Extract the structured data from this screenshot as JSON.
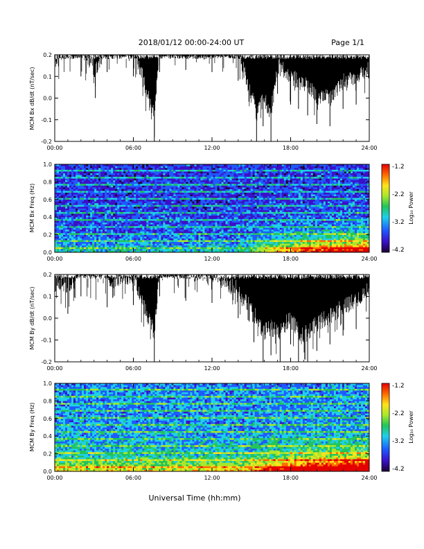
{
  "header": {
    "title": "2018/01/12  00:00-24:00 UT",
    "page": "Page 1/1"
  },
  "footer": {
    "xlabel": "Universal Time (hh:mm)"
  },
  "colorbar": {
    "label": "Log₁₀ Power",
    "ticks": [
      "-1.2",
      "-2.2",
      "-3.2",
      "-4.2"
    ]
  },
  "chart_data": [
    {
      "type": "line",
      "panel": "bx-waveform",
      "ylabel": "MCM Bx dB/dt (nT/sec)",
      "xlim": [
        0,
        24
      ],
      "ylim": [
        -0.2,
        0.2
      ],
      "xticks": [
        "00:00",
        "06:00",
        "12:00",
        "18:00",
        "24:00"
      ],
      "yticks": [
        "0.2",
        "0.1",
        "0.0",
        "-0.1",
        "-0.2"
      ],
      "series": [
        {
          "x": [
            0,
            2,
            3.1,
            4,
            6,
            7.6,
            8,
            10,
            12,
            14,
            15.4,
            15.9,
            16.5,
            17,
            18,
            18.6,
            19.3,
            20,
            21,
            22,
            23,
            24
          ],
          "y": [
            0.06,
            0.1,
            0.0,
            0.12,
            0.1,
            -0.2,
            0.12,
            0.13,
            0.12,
            0.08,
            -0.2,
            -0.13,
            -0.2,
            0.02,
            -0.03,
            -0.05,
            -0.08,
            -0.12,
            -0.13,
            -0.05,
            -0.03,
            0.0
          ]
        }
      ]
    },
    {
      "type": "heatmap",
      "panel": "bx-spectrogram",
      "ylabel": "MCM Bx Freq (Hz)",
      "xlim": [
        0,
        24
      ],
      "ylim": [
        0.0,
        1.0
      ],
      "xticks": [
        "00:00",
        "06:00",
        "12:00",
        "18:00",
        "24:00"
      ],
      "yticks": [
        "1.0",
        "0.8",
        "0.6",
        "0.4",
        "0.2",
        "0.0"
      ],
      "colorbar_range": [
        -4.2,
        -1.2
      ],
      "colormap": [
        "#1a0033",
        "#3b10c8",
        "#1e5bff",
        "#1fd0e8",
        "#22c45a",
        "#a8e82b",
        "#ffe31a",
        "#ff6a00",
        "#e50000"
      ]
    },
    {
      "type": "line",
      "panel": "by-waveform",
      "ylabel": "MCM By dB/dt (nT/sec)",
      "xlim": [
        0,
        24
      ],
      "ylim": [
        -0.2,
        0.2
      ],
      "xticks": [
        "00:00",
        "06:00",
        "12:00",
        "18:00",
        "24:00"
      ],
      "yticks": [
        "0.2",
        "0.1",
        "0.0",
        "-0.1",
        "-0.2"
      ],
      "series": [
        {
          "x": [
            0,
            1,
            2,
            4,
            6,
            7.6,
            8,
            10,
            12,
            14,
            15.2,
            15.9,
            16.5,
            17.2,
            18,
            18.6,
            19.3,
            20,
            21,
            22,
            23,
            24
          ],
          "y": [
            0.03,
            0.02,
            0.1,
            0.05,
            0.06,
            -0.2,
            0.1,
            0.08,
            0.07,
            0.0,
            -0.11,
            -0.2,
            -0.17,
            -0.2,
            -0.12,
            -0.2,
            -0.2,
            -0.15,
            -0.12,
            -0.08,
            -0.05,
            0.0
          ]
        }
      ]
    },
    {
      "type": "heatmap",
      "panel": "by-spectrogram",
      "ylabel": "MCM By Freq (Hz)",
      "xlim": [
        0,
        24
      ],
      "ylim": [
        0.0,
        1.0
      ],
      "xticks": [
        "00:00",
        "06:00",
        "12:00",
        "18:00",
        "24:00"
      ],
      "yticks": [
        "1.0",
        "0.8",
        "0.6",
        "0.4",
        "0.2",
        "0.0"
      ],
      "colorbar_range": [
        -4.2,
        -1.2
      ],
      "colormap": [
        "#1a0033",
        "#3b10c8",
        "#1e5bff",
        "#1fd0e8",
        "#22c45a",
        "#a8e82b",
        "#ffe31a",
        "#ff6a00",
        "#e50000"
      ]
    }
  ]
}
